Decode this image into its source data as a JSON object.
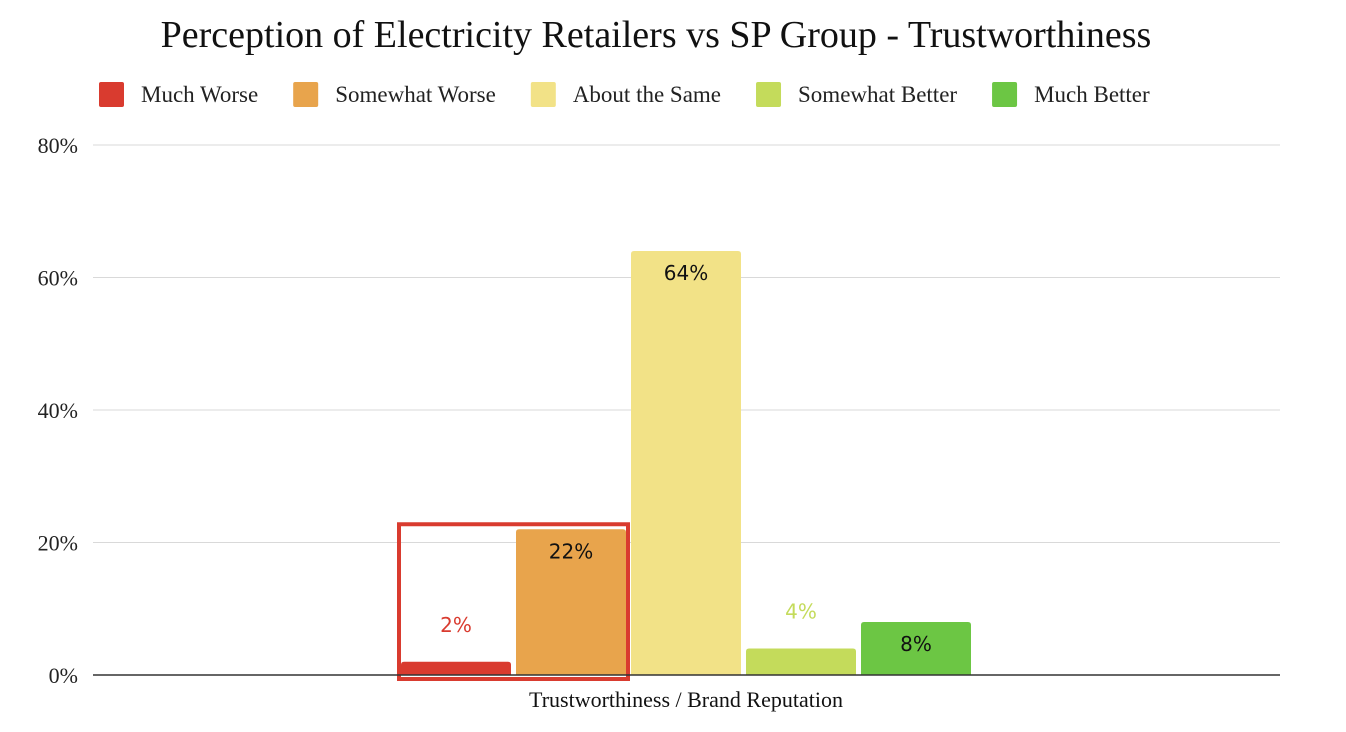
{
  "chart_data": {
    "type": "bar",
    "title": "Perception of Electricity Retailers vs SP Group - Trustworthiness",
    "xlabel": "",
    "ylabel": "",
    "categories": [
      "Trustworthiness / Brand Reputation"
    ],
    "ylim": [
      0,
      0.8
    ],
    "y_ticks": [
      {
        "value": 0,
        "label": "0%"
      },
      {
        "value": 0.2,
        "label": "20%"
      },
      {
        "value": 0.4,
        "label": "40%"
      },
      {
        "value": 0.6,
        "label": "60%"
      },
      {
        "value": 0.8,
        "label": "80%"
      }
    ],
    "grid": true,
    "legend_position": "top",
    "series": [
      {
        "name": "Much Worse",
        "values": [
          0.02
        ],
        "label": "2%",
        "color": "#d93b2f",
        "label_color": "#d93b2f",
        "label_position": "above"
      },
      {
        "name": "Somewhat Worse",
        "values": [
          0.22
        ],
        "label": "22%",
        "color": "#e8a44c",
        "label_color": "#111111",
        "label_position": "inside"
      },
      {
        "name": "About the Same",
        "values": [
          0.64
        ],
        "label": "64%",
        "color": "#f2e287",
        "label_color": "#111111",
        "label_position": "inside"
      },
      {
        "name": "Somewhat Better",
        "values": [
          0.04
        ],
        "label": "4%",
        "color": "#c4db5b",
        "label_color": "#c4db5b",
        "label_position": "above"
      },
      {
        "name": "Much Better",
        "values": [
          0.08
        ],
        "label": "8%",
        "color": "#6cc644",
        "label_color": "#111111",
        "label_position": "inside"
      }
    ],
    "highlight": {
      "series": [
        "Much Worse",
        "Somewhat Worse"
      ],
      "color": "#d93b2f"
    }
  }
}
